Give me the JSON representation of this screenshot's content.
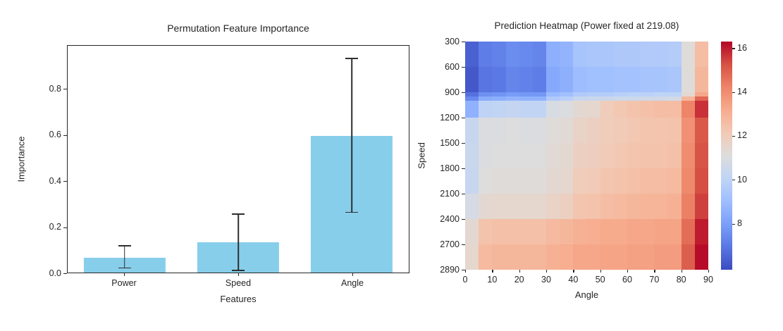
{
  "figure": {
    "background": "#ffffff",
    "text_color": "#262626"
  },
  "chart_data": [
    {
      "type": "bar",
      "title": "Permutation Feature Importance",
      "xlabel": "Features",
      "ylabel": "Importance",
      "categories": [
        "Power",
        "Speed",
        "Angle"
      ],
      "values": [
        0.066,
        0.131,
        0.597
      ],
      "error_low": [
        0.018,
        0.006,
        0.261
      ],
      "error_high": [
        0.115,
        0.253,
        0.932
      ],
      "yticks": [
        "0.0",
        "0.2",
        "0.4",
        "0.6",
        "0.8"
      ],
      "ylim": [
        0,
        0.99
      ],
      "bar_color": "#87ceeb",
      "error_color": "#2f2f2f",
      "bar_width_pct": 24,
      "grid": false,
      "legend": null
    },
    {
      "type": "heatmap",
      "title": "Prediction Heatmap (Power fixed at 219.08)",
      "xlabel": "Angle",
      "ylabel": "Speed",
      "xticks": [
        "0",
        "10",
        "20",
        "30",
        "40",
        "50",
        "60",
        "70",
        "80",
        "90"
      ],
      "yticks": [
        "300",
        "600",
        "900",
        "1200",
        "1500",
        "1800",
        "2100",
        "2400",
        "2700",
        "2890"
      ],
      "colormap": "coolwarm",
      "vmin": 5.9,
      "vmax": 16.3,
      "colorbar_ticks": [
        "8",
        "10",
        "12",
        "14",
        "16"
      ],
      "angle_edges": [
        0,
        5,
        10,
        15,
        20,
        25,
        30,
        35,
        40,
        45,
        50,
        55,
        60,
        65,
        70,
        75,
        80,
        85,
        90
      ],
      "speed_edges": [
        300,
        600,
        900,
        950,
        1000,
        1200,
        1500,
        1800,
        2100,
        2400,
        2700,
        2890
      ],
      "row_fractions": [
        0,
        0.111,
        0.222,
        0.24,
        0.258,
        0.333,
        0.444,
        0.556,
        0.667,
        0.778,
        0.889,
        1
      ],
      "values": [
        [
          6.4,
          7.1,
          7.2,
          7.5,
          7.4,
          7.3,
          8.5,
          8.7,
          9.3,
          9.4,
          9.4,
          9.5,
          9.5,
          9.6,
          9.6,
          9.7,
          11.2,
          12.6
        ],
        [
          6.2,
          6.9,
          7.0,
          7.3,
          7.2,
          7.1,
          8.3,
          8.5,
          9.0,
          9.1,
          9.1,
          9.2,
          9.2,
          9.3,
          9.3,
          9.4,
          11.2,
          12.8
        ],
        [
          6.8,
          7.6,
          7.7,
          7.9,
          7.8,
          7.8,
          8.9,
          9.1,
          9.6,
          9.7,
          9.7,
          9.8,
          9.9,
          9.9,
          10.0,
          10.0,
          11.4,
          13.3
        ],
        [
          7.4,
          8.4,
          8.5,
          8.7,
          8.6,
          8.6,
          9.6,
          9.8,
          10.3,
          10.4,
          10.4,
          10.5,
          10.5,
          10.6,
          10.6,
          10.7,
          12.8,
          14.8
        ],
        [
          8.6,
          10.0,
          10.1,
          10.2,
          10.1,
          10.1,
          10.9,
          11.0,
          11.4,
          11.5,
          12.0,
          12.2,
          12.4,
          12.5,
          12.6,
          12.6,
          14.2,
          15.7
        ],
        [
          10.3,
          11.0,
          11.0,
          11.1,
          11.0,
          11.0,
          11.2,
          11.3,
          11.7,
          11.8,
          12.0,
          12.1,
          12.2,
          12.3,
          12.3,
          12.4,
          13.9,
          15.1
        ],
        [
          10.4,
          11.0,
          11.1,
          11.1,
          11.1,
          11.1,
          11.3,
          11.4,
          11.8,
          11.9,
          12.1,
          12.2,
          12.3,
          12.4,
          12.4,
          12.5,
          14.0,
          15.2
        ],
        [
          10.3,
          11.1,
          11.2,
          11.2,
          11.2,
          11.2,
          11.4,
          11.5,
          12.0,
          12.1,
          12.3,
          12.4,
          12.5,
          12.6,
          12.6,
          12.7,
          14.1,
          15.3
        ],
        [
          10.8,
          11.4,
          11.5,
          11.5,
          11.5,
          11.5,
          11.7,
          11.8,
          12.3,
          12.4,
          12.6,
          12.7,
          12.8,
          12.9,
          12.9,
          13.0,
          14.3,
          15.5
        ],
        [
          11.4,
          12.4,
          12.5,
          12.5,
          12.5,
          12.5,
          12.7,
          12.8,
          13.0,
          13.1,
          13.2,
          13.2,
          13.3,
          13.3,
          13.4,
          13.4,
          14.7,
          16.0
        ],
        [
          11.5,
          12.7,
          12.8,
          12.8,
          12.8,
          12.8,
          13.0,
          13.1,
          13.3,
          13.3,
          13.4,
          13.4,
          13.5,
          13.5,
          13.6,
          13.6,
          15.0,
          16.2
        ]
      ]
    }
  ]
}
